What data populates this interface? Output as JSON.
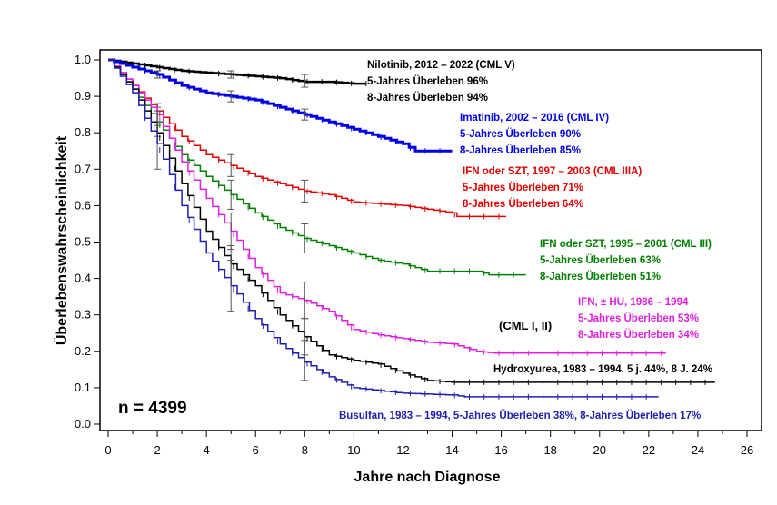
{
  "chart_data": {
    "type": "line",
    "subtype": "kaplan-meier step",
    "xlabel": "Jahre nach Diagnose",
    "ylabel": "Überlebenswahrscheinlichkeit",
    "xlim": [
      0,
      26
    ],
    "ylim": [
      0,
      1
    ],
    "xticks": [
      0,
      2,
      4,
      6,
      8,
      10,
      12,
      14,
      16,
      18,
      20,
      22,
      24,
      26
    ],
    "yticks": [
      "0.0",
      "0.1",
      "0.2",
      "0.3",
      "0.4",
      "0.5",
      "0.6",
      "0.7",
      "0.8",
      "0.9",
      "1.0"
    ],
    "grid": false,
    "annotation": "n = 4399",
    "series": [
      {
        "key": "nilotinib",
        "color": "#000000",
        "width": 2.5,
        "labels": [
          "Nilotinib, 2012 – 2022 (CML V)",
          "5-Jahres Überleben 96%",
          "8-Jahres Überleben 94%"
        ],
        "x": [
          0,
          1,
          2,
          3,
          4,
          5,
          6,
          7,
          8,
          9,
          10,
          10.5
        ],
        "y": [
          1.0,
          0.99,
          0.98,
          0.97,
          0.965,
          0.96,
          0.955,
          0.95,
          0.94,
          0.94,
          0.935,
          0.935
        ],
        "errors": [
          [
            5,
            0.95,
            0.97
          ],
          [
            8,
            0.925,
            0.96
          ]
        ]
      },
      {
        "key": "imatinib",
        "color": "#0000e6",
        "width": 3,
        "labels": [
          "Imatinib, 2002 – 2016 (CML IV)",
          "5-Jahres Überleben 90%",
          "8-Jahres Überleben 85%"
        ],
        "x": [
          0,
          1,
          2,
          3,
          4,
          5,
          6,
          7,
          8,
          9,
          10,
          11,
          12,
          12.5,
          14
        ],
        "y": [
          1.0,
          0.98,
          0.96,
          0.93,
          0.91,
          0.9,
          0.89,
          0.87,
          0.85,
          0.83,
          0.81,
          0.79,
          0.77,
          0.75,
          0.75
        ],
        "errors": [
          [
            2,
            0.95,
            0.97
          ],
          [
            5,
            0.885,
            0.915
          ],
          [
            8,
            0.835,
            0.865
          ]
        ]
      },
      {
        "key": "ifn-szt-1997",
        "color": "#e00000",
        "width": 1.5,
        "labels": [
          "IFN oder SZT, 1997 – 2003 (CML IIIA)",
          "5-Jahres Überleben 71%",
          "8-Jahres Überleben 64%"
        ],
        "x": [
          0,
          1,
          2,
          3,
          4,
          5,
          6,
          7,
          8,
          9,
          10,
          12,
          14,
          14.2,
          16.2
        ],
        "y": [
          1.0,
          0.93,
          0.86,
          0.79,
          0.74,
          0.71,
          0.68,
          0.66,
          0.64,
          0.63,
          0.61,
          0.6,
          0.58,
          0.57,
          0.57
        ],
        "errors": [
          [
            2,
            0.82,
            0.88
          ],
          [
            5,
            0.68,
            0.74
          ],
          [
            8,
            0.61,
            0.67
          ]
        ]
      },
      {
        "key": "ifn-szt-1995",
        "color": "#008000",
        "width": 1.5,
        "labels": [
          "IFN oder SZT, 1995 – 2001 (CML III)",
          "5-Jahres Überleben 63%",
          "8-Jahres Überleben 51%"
        ],
        "x": [
          0,
          1,
          2,
          3,
          4,
          5,
          6,
          7,
          8,
          9,
          10,
          11,
          12,
          13,
          15,
          15.5,
          17
        ],
        "y": [
          1.0,
          0.92,
          0.83,
          0.74,
          0.68,
          0.63,
          0.58,
          0.54,
          0.51,
          0.49,
          0.47,
          0.45,
          0.44,
          0.42,
          0.42,
          0.41,
          0.41
        ],
        "errors": [
          [
            2,
            0.79,
            0.87
          ],
          [
            5,
            0.59,
            0.67
          ],
          [
            8,
            0.47,
            0.55
          ]
        ]
      },
      {
        "key": "ifn-hu",
        "color": "#e020e0",
        "width": 1.5,
        "labels": [
          "IFN, ± HU, 1986 – 1994",
          "5-Jahres Überleben 53%",
          "8-Jahres Überleben 34%"
        ],
        "x": [
          0,
          1,
          2,
          3,
          4,
          5,
          6,
          7,
          8,
          9,
          10,
          11,
          12,
          13,
          14,
          15,
          15.7,
          22.7
        ],
        "y": [
          1.0,
          0.93,
          0.85,
          0.72,
          0.62,
          0.53,
          0.43,
          0.36,
          0.34,
          0.31,
          0.26,
          0.245,
          0.235,
          0.225,
          0.22,
          0.2,
          0.195,
          0.195
        ],
        "errors": [
          [
            5,
            0.48,
            0.58
          ],
          [
            8,
            0.29,
            0.39
          ]
        ]
      },
      {
        "key": "hydroxyurea",
        "color": "#000000",
        "width": 1.5,
        "labels": [
          "Hydroxyurea, 1983 – 1994. 5 j. 44%, 8 J. 24%"
        ],
        "x": [
          0,
          1,
          2,
          3,
          4,
          5,
          6,
          7,
          8,
          9,
          10,
          11,
          12,
          13,
          14,
          24.7
        ],
        "y": [
          1.0,
          0.92,
          0.8,
          0.66,
          0.53,
          0.44,
          0.38,
          0.3,
          0.24,
          0.19,
          0.175,
          0.165,
          0.14,
          0.12,
          0.115,
          0.115
        ],
        "errors": [
          [
            2,
            0.7,
            0.86
          ],
          [
            5,
            0.39,
            0.49
          ],
          [
            8,
            0.19,
            0.29
          ]
        ]
      },
      {
        "key": "busulfan",
        "color": "#2020b0",
        "width": 1.5,
        "labels": [
          "Busulfan, 1983 – 1994, 5-Jahres Überleben 38%, 8-Jahres Überleben  17%"
        ],
        "x": [
          0,
          1,
          2,
          3,
          4,
          5,
          6,
          7,
          8,
          9,
          10,
          12,
          14,
          14.5,
          22.4
        ],
        "y": [
          1.0,
          0.91,
          0.77,
          0.6,
          0.47,
          0.38,
          0.29,
          0.22,
          0.17,
          0.13,
          0.1,
          0.085,
          0.08,
          0.075,
          0.075
        ],
        "errors": [
          [
            5,
            0.31,
            0.45
          ],
          [
            8,
            0.12,
            0.23
          ]
        ]
      }
    ],
    "group_label": "(CML I, II)"
  }
}
